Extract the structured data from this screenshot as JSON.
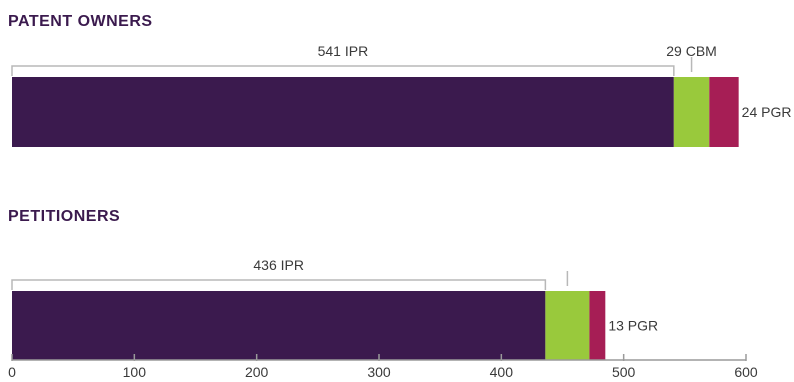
{
  "chart_data": {
    "type": "bar",
    "orientation": "horizontal",
    "stacked": true,
    "xlim": [
      0,
      600
    ],
    "xticks": [
      "0",
      "100",
      "200",
      "300",
      "400",
      "500",
      "600"
    ],
    "grid": false,
    "colors": {
      "IPR": "#3b1a4e",
      "CBM": "#99c93c",
      "PGR": "#a61e55",
      "title": "#3b1a4e"
    },
    "groups": [
      {
        "title": "PATENT OWNERS",
        "segments": [
          {
            "type": "IPR",
            "value": 541,
            "label": "541 IPR"
          },
          {
            "type": "CBM",
            "value": 29,
            "label": "29 CBM"
          },
          {
            "type": "PGR",
            "value": 24,
            "label": "24 PGR"
          }
        ]
      },
      {
        "title": "PETITIONERS",
        "segments": [
          {
            "type": "IPR",
            "value": 436,
            "label": "436 IPR"
          },
          {
            "type": "CBM",
            "value": 36,
            "label": ""
          },
          {
            "type": "PGR",
            "value": 13,
            "label": "13 PGR"
          }
        ]
      }
    ]
  }
}
